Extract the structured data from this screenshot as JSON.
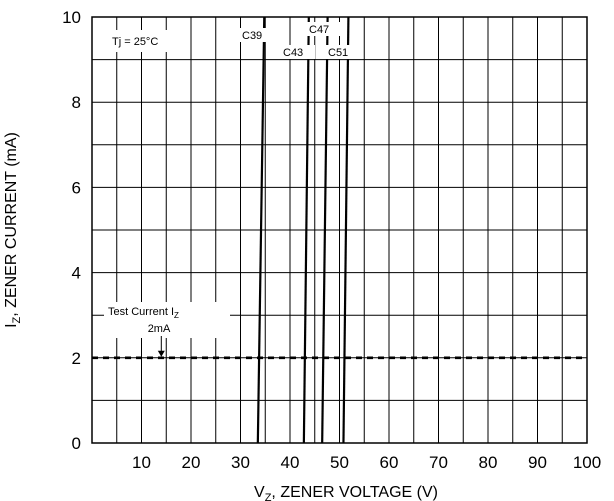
{
  "chart_data": {
    "type": "line",
    "title": "",
    "xlabel": {
      "prefix": "V",
      "sub": "Z",
      "text": ", ZENER VOLTAGE (V)"
    },
    "ylabel": {
      "prefix": "I",
      "sub": "Z",
      "text": ", ZENER CURRENT (mA)"
    },
    "xlim": [
      0,
      100
    ],
    "ylim": [
      0,
      10
    ],
    "x_ticks": [
      10,
      20,
      30,
      40,
      50,
      60,
      70,
      80,
      90,
      100
    ],
    "y_ticks": [
      0,
      2,
      4,
      6,
      8,
      10
    ],
    "grid": true,
    "series": [
      {
        "name": "C39",
        "x": [
          33.5,
          34.8
        ],
        "y": [
          0,
          10
        ]
      },
      {
        "name": "C43",
        "x": [
          42.8,
          43.8
        ],
        "y": [
          0,
          10
        ]
      },
      {
        "name": "C47",
        "x": [
          46.5,
          47.6
        ],
        "y": [
          0,
          10
        ]
      },
      {
        "name": "C51",
        "x": [
          50.8,
          51.8
        ],
        "y": [
          0,
          10
        ]
      }
    ],
    "reference_line": {
      "y": 2,
      "style": "dashed"
    },
    "annotations": {
      "condition": "Tj = 25°C",
      "test_current_prefix": "Test Current I",
      "test_current_sub": "Z",
      "test_current_value": "2mA",
      "test_current_marker_x": 14
    }
  }
}
